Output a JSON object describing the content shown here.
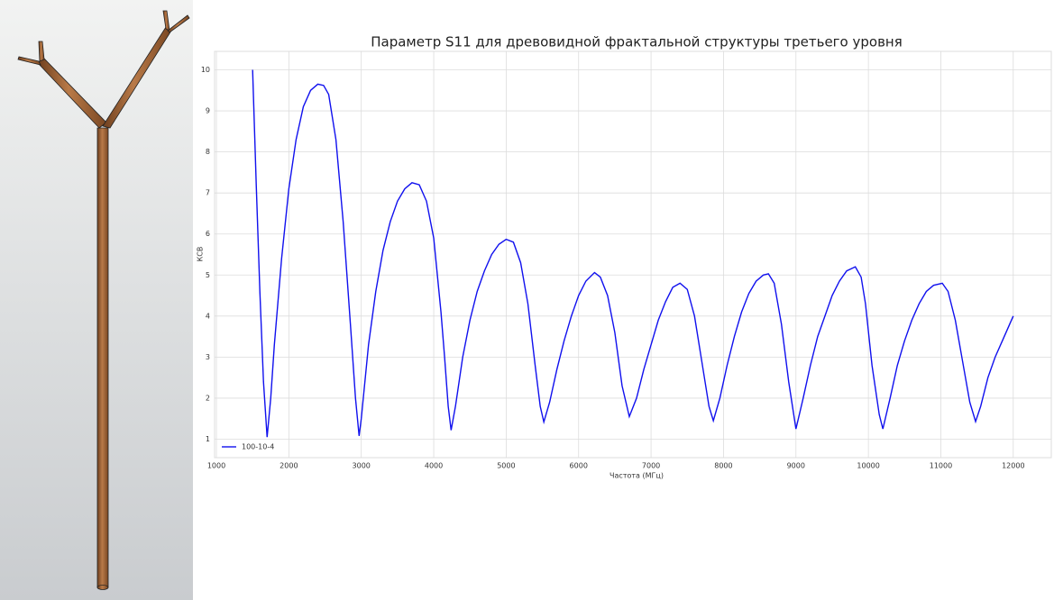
{
  "chart_data": {
    "type": "line",
    "title": "Параметр S11 для древовидной фрактальной структуры третьего уровня",
    "x_label": "Частота (МГц)",
    "y_label": "КСВ",
    "x": [
      1500,
      1550,
      1600,
      1650,
      1700,
      1750,
      1800,
      1900,
      2000,
      2100,
      2200,
      2300,
      2400,
      2480,
      2550,
      2650,
      2750,
      2850,
      2920,
      2970,
      3000,
      3100,
      3200,
      3300,
      3400,
      3500,
      3600,
      3700,
      3800,
      3900,
      4000,
      4100,
      4150,
      4200,
      4240,
      4300,
      4400,
      4500,
      4600,
      4700,
      4800,
      4900,
      5000,
      5100,
      5200,
      5300,
      5400,
      5470,
      5520,
      5600,
      5700,
      5800,
      5900,
      6000,
      6100,
      6220,
      6300,
      6400,
      6500,
      6600,
      6700,
      6800,
      6900,
      7000,
      7100,
      7200,
      7300,
      7400,
      7500,
      7600,
      7700,
      7800,
      7860,
      7950,
      8050,
      8150,
      8250,
      8350,
      8450,
      8550,
      8620,
      8700,
      8800,
      8900,
      9000,
      9100,
      9200,
      9300,
      9400,
      9500,
      9600,
      9700,
      9820,
      9900,
      9960,
      10050,
      10150,
      10200,
      10300,
      10400,
      10500,
      10600,
      10700,
      10800,
      10900,
      11020,
      11100,
      11200,
      11300,
      11400,
      11480,
      11550,
      11650,
      11750,
      11850,
      11950,
      12000
    ],
    "series": [
      {
        "name": "100-10-4",
        "color": "#1010ee",
        "values": [
          10,
          7.2,
          4.6,
          2.4,
          1.05,
          2.0,
          3.3,
          5.4,
          7.1,
          8.3,
          9.1,
          9.5,
          9.65,
          9.62,
          9.4,
          8.3,
          6.3,
          3.8,
          2.0,
          1.08,
          1.5,
          3.3,
          4.6,
          5.6,
          6.3,
          6.8,
          7.1,
          7.25,
          7.2,
          6.8,
          5.9,
          4.1,
          3.0,
          1.8,
          1.22,
          1.8,
          3.0,
          3.9,
          4.6,
          5.1,
          5.5,
          5.75,
          5.87,
          5.8,
          5.3,
          4.3,
          2.8,
          1.8,
          1.42,
          1.9,
          2.7,
          3.4,
          4.0,
          4.5,
          4.85,
          5.06,
          4.95,
          4.5,
          3.6,
          2.3,
          1.55,
          2.0,
          2.7,
          3.3,
          3.9,
          4.35,
          4.7,
          4.8,
          4.65,
          4.0,
          2.9,
          1.8,
          1.45,
          2.0,
          2.8,
          3.5,
          4.1,
          4.55,
          4.85,
          5.0,
          5.03,
          4.8,
          3.8,
          2.4,
          1.25,
          2.0,
          2.8,
          3.5,
          4.0,
          4.5,
          4.85,
          5.1,
          5.2,
          4.95,
          4.3,
          2.8,
          1.6,
          1.25,
          2.0,
          2.8,
          3.4,
          3.9,
          4.3,
          4.6,
          4.75,
          4.8,
          4.6,
          3.9,
          2.9,
          1.9,
          1.43,
          1.8,
          2.5,
          3.0,
          3.4,
          3.8,
          4.0
        ]
      }
    ],
    "xlim": [
      975,
      12525
    ],
    "ylim": [
      0.55,
      10.45
    ],
    "xticks": [
      1000,
      2000,
      3000,
      4000,
      5000,
      6000,
      7000,
      8000,
      9000,
      10000,
      11000,
      12000
    ],
    "yticks": [
      1,
      2,
      3,
      4,
      5,
      6,
      7,
      8,
      9,
      10
    ],
    "grid": true,
    "legend": "lower left"
  }
}
